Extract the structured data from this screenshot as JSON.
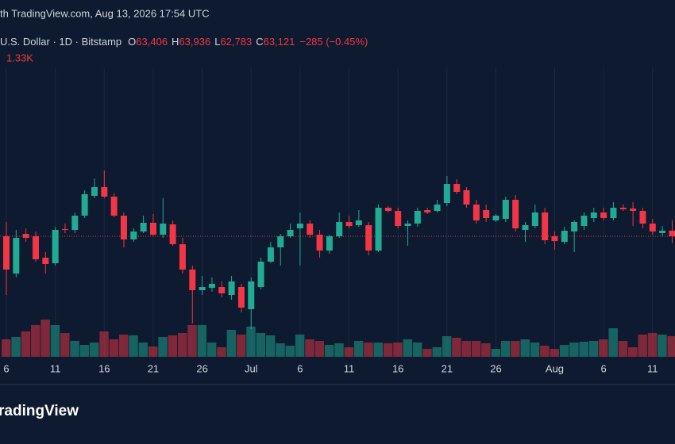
{
  "chart_data": {
    "type": "candlestick",
    "header": "th TradingView.com, Aug 13, 2026 17:54 UTC",
    "symbol": "U.S. Dollar · 1D · Bitstamp",
    "legend": [
      {
        "key": "O",
        "value": "63,406"
      },
      {
        "key": "H",
        "value": "63,936"
      },
      {
        "key": "L",
        "value": "62,783"
      },
      {
        "key": "C",
        "value": "63,121"
      }
    ],
    "change": "−285 (−0.45%)",
    "volume_label": "1.33K",
    "brand": "radingView",
    "categories": [
      "6",
      null,
      null,
      null,
      null,
      "11",
      null,
      null,
      null,
      null,
      "16",
      null,
      null,
      null,
      null,
      "21",
      null,
      null,
      null,
      null,
      "26",
      null,
      null,
      null,
      null,
      "Jul",
      null,
      null,
      null,
      null,
      "6",
      null,
      null,
      null,
      null,
      "11",
      null,
      null,
      null,
      null,
      "16",
      null,
      null,
      null,
      null,
      "21",
      null,
      null,
      null,
      null,
      "26",
      null,
      null,
      null,
      null,
      null,
      "Aug",
      null,
      null,
      null,
      null,
      "6",
      null,
      null,
      null,
      null,
      "11",
      null,
      null
    ],
    "open": [
      63121,
      61241,
      63241,
      63121,
      62041,
      61761,
      63481,
      63441,
      64161,
      65161,
      65601,
      65121,
      64161,
      62961,
      63361,
      63801,
      63201,
      63721,
      62721,
      61441,
      60401,
      60521,
      60561,
      60161,
      60561,
      59441,
      60561,
      61841,
      62561,
      63121,
      63521,
      63761,
      63201,
      62401,
      63121,
      63841,
      63681,
      63681,
      62401,
      64561,
      64401,
      63641,
      63761,
      64441,
      64401,
      64801,
      65761,
      65441,
      64721,
      64441,
      63921,
      64001,
      64961,
      63441,
      63641,
      64321,
      63121,
      62841,
      63361,
      63641,
      64041,
      64321,
      64041,
      64561,
      64521,
      64401,
      63761,
      63281,
      63406
    ],
    "high": [
      63841,
      63441,
      63521,
      63361,
      62321,
      63601,
      63761,
      64321,
      65441,
      66041,
      66441,
      65281,
      64321,
      63521,
      64161,
      64241,
      65041,
      63921,
      63041,
      61641,
      61121,
      61041,
      60841,
      61121,
      60721,
      61041,
      62041,
      62841,
      63241,
      63761,
      64321,
      63921,
      63441,
      63201,
      64321,
      64161,
      64441,
      63841,
      64721,
      64641,
      64561,
      63921,
      64561,
      64561,
      64961,
      66161,
      66001,
      65601,
      64961,
      64721,
      64241,
      65121,
      65201,
      63841,
      64721,
      64561,
      63361,
      63601,
      63921,
      64321,
      64561,
      64561,
      64841,
      64721,
      64841,
      64561,
      64001,
      63641,
      63936
    ],
    "low": [
      60161,
      61041,
      62841,
      61841,
      61241,
      61641,
      63281,
      63281,
      64041,
      65041,
      65041,
      64081,
      62561,
      62841,
      63281,
      63121,
      63041,
      62641,
      61241,
      58721,
      60161,
      60321,
      60041,
      59921,
      59281,
      58441,
      60441,
      61761,
      61641,
      63041,
      61641,
      63041,
      62041,
      62241,
      63041,
      63521,
      63601,
      62161,
      62321,
      64321,
      63521,
      62641,
      63601,
      64241,
      64321,
      64641,
      65241,
      64561,
      63761,
      63841,
      63841,
      63841,
      63361,
      62841,
      63521,
      62721,
      62441,
      62721,
      62321,
      63441,
      63841,
      63921,
      63921,
      64401,
      63641,
      63521,
      63201,
      63121,
      62783
    ],
    "close": [
      61441,
      63041,
      63041,
      61961,
      61721,
      63441,
      63441,
      64161,
      65241,
      65601,
      65121,
      64161,
      62961,
      63361,
      63801,
      63201,
      63761,
      62721,
      61441,
      60401,
      60561,
      60721,
      60241,
      60841,
      59521,
      60841,
      61841,
      62561,
      63121,
      63441,
      63761,
      63201,
      62401,
      63121,
      63841,
      63641,
      63921,
      62401,
      64561,
      64401,
      63641,
      63761,
      64401,
      64321,
      64721,
      65761,
      65361,
      64721,
      63921,
      64041,
      64161,
      64961,
      63521,
      63681,
      64321,
      62921,
      62881,
      63401,
      63841,
      64161,
      64321,
      64041,
      64561,
      64481,
      64401,
      63761,
      63361,
      63406,
      63121
    ],
    "volume": [
      1122,
      1275,
      1632,
      2040,
      2397,
      2040,
      1530,
      1020,
      765,
      918,
      1632,
      1122,
      1428,
      1377,
      918,
      663,
      1275,
      1377,
      1530,
      2040,
      2040,
      918,
      612,
      1734,
      1428,
      1938,
      1530,
      1377,
      867,
      714,
      1428,
      1122,
      1020,
      765,
      867,
      612,
      1020,
      918,
      918,
      867,
      918,
      1122,
      918,
      510,
      612,
      1326,
      1224,
      1020,
      1020,
      867,
      510,
      1020,
      1020,
      1122,
      918,
      714,
      510,
      765,
      918,
      969,
      1020,
      1122,
      1836,
      1020,
      612,
      1428,
      1530,
      1428,
      1330
    ],
    "up_color": "#22ab94",
    "down_color": "#f23645",
    "ylim": [
      57041,
      71641
    ],
    "volume_lim": [
      0,
      4080
    ],
    "grid": true,
    "price_line": true
  }
}
